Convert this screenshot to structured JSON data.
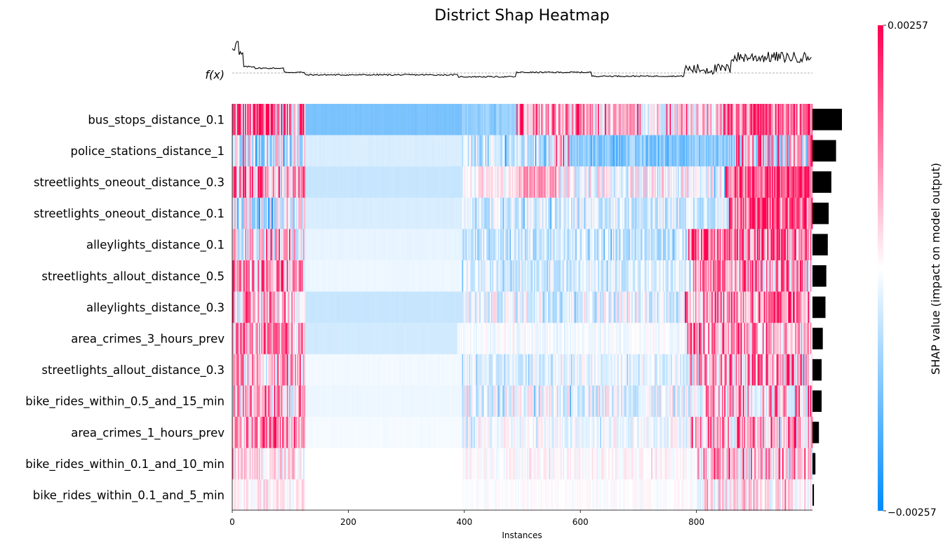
{
  "chart_data": {
    "type": "heatmap",
    "title": "District Shap Heatmap",
    "xlabel": "Instances",
    "fx_label": "f(x)",
    "colorbar_label": "SHAP value (impact on model output)",
    "colorbar_max_label": "0.00257",
    "colorbar_min_label": "−0.00257",
    "value_range": [
      -0.00257,
      0.00257
    ],
    "color_low": "#008bfb",
    "color_mid": "#ffffff",
    "color_high": "#ff0051",
    "n_instances": 1000,
    "xlim": [
      0,
      1000
    ],
    "xticks": [
      0,
      200,
      400,
      600,
      800
    ],
    "xtick_labels": [
      "0",
      "200",
      "400",
      "600",
      "800"
    ],
    "features": [
      "bus_stops_distance_0.1",
      "police_stations_distance_1",
      "streetlights_oneout_distance_0.3",
      "streetlights_oneout_distance_0.1",
      "alleylights_distance_0.1",
      "streetlights_allout_distance_0.5",
      "alleylights_distance_0.3",
      "area_crimes_3_hours_prev",
      "streetlights_allout_distance_0.3",
      "bike_rides_within_0.5_and_15_min",
      "area_crimes_1_hours_prev",
      "bike_rides_within_0.1_and_10_min",
      "bike_rides_within_0.1_and_5_min"
    ],
    "mean_abs_shap_relative": [
      1.0,
      0.8,
      0.64,
      0.55,
      0.52,
      0.47,
      0.44,
      0.35,
      0.31,
      0.31,
      0.22,
      0.1,
      0.05
    ],
    "row_segments": [
      [
        [
          0,
          125,
          0.5,
          0.9
        ],
        [
          125,
          395,
          -0.52,
          0.02
        ],
        [
          395,
          490,
          -0.42,
          0.1
        ],
        [
          490,
          620,
          0.3,
          0.5
        ],
        [
          620,
          845,
          0.12,
          0.45
        ],
        [
          845,
          1000,
          0.55,
          0.5
        ]
      ],
      [
        [
          0,
          125,
          -0.12,
          0.55
        ],
        [
          125,
          395,
          -0.15,
          0.01
        ],
        [
          395,
          545,
          -0.22,
          0.3
        ],
        [
          545,
          580,
          0.05,
          0.4
        ],
        [
          580,
          860,
          -0.45,
          0.2
        ],
        [
          860,
          1000,
          0.1,
          0.8
        ]
      ],
      [
        [
          0,
          125,
          0.3,
          0.6
        ],
        [
          125,
          395,
          -0.22,
          0.01
        ],
        [
          395,
          490,
          0.0,
          0.2
        ],
        [
          490,
          560,
          0.35,
          0.3
        ],
        [
          560,
          850,
          -0.02,
          0.35
        ],
        [
          850,
          1000,
          0.65,
          0.45
        ]
      ],
      [
        [
          0,
          125,
          -0.05,
          0.5
        ],
        [
          125,
          395,
          -0.15,
          0.01
        ],
        [
          395,
          855,
          -0.15,
          0.25
        ],
        [
          855,
          1000,
          0.62,
          0.5
        ]
      ],
      [
        [
          0,
          125,
          0.1,
          0.5
        ],
        [
          125,
          395,
          -0.09,
          0.01
        ],
        [
          395,
          785,
          -0.2,
          0.25
        ],
        [
          785,
          1000,
          0.42,
          0.6
        ]
      ],
      [
        [
          0,
          125,
          0.35,
          0.55
        ],
        [
          125,
          395,
          -0.07,
          0.01
        ],
        [
          395,
          790,
          -0.14,
          0.2
        ],
        [
          790,
          1000,
          0.3,
          0.55
        ]
      ],
      [
        [
          0,
          125,
          0.22,
          0.5
        ],
        [
          125,
          395,
          -0.22,
          0.01
        ],
        [
          395,
          780,
          -0.08,
          0.28
        ],
        [
          780,
          1000,
          0.35,
          0.55
        ]
      ],
      [
        [
          0,
          125,
          0.28,
          0.5
        ],
        [
          125,
          388,
          -0.18,
          0.01
        ],
        [
          388,
          780,
          -0.04,
          0.1
        ],
        [
          780,
          1000,
          0.32,
          0.5
        ]
      ],
      [
        [
          0,
          125,
          0.22,
          0.55
        ],
        [
          125,
          395,
          -0.05,
          0.01
        ],
        [
          395,
          785,
          -0.1,
          0.18
        ],
        [
          785,
          1000,
          0.25,
          0.6
        ]
      ],
      [
        [
          0,
          125,
          0.22,
          0.55
        ],
        [
          125,
          395,
          -0.07,
          0.01
        ],
        [
          395,
          815,
          -0.08,
          0.28
        ],
        [
          815,
          1000,
          0.22,
          0.6
        ]
      ],
      [
        [
          0,
          125,
          0.3,
          0.5
        ],
        [
          125,
          395,
          -0.04,
          0.01
        ],
        [
          395,
          790,
          -0.03,
          0.18
        ],
        [
          790,
          1000,
          0.22,
          0.55
        ]
      ],
      [
        [
          0,
          125,
          0.08,
          0.3
        ],
        [
          125,
          395,
          0.0,
          0.0
        ],
        [
          395,
          800,
          0.02,
          0.12
        ],
        [
          800,
          1000,
          0.15,
          0.45
        ]
      ],
      [
        [
          0,
          125,
          0.04,
          0.2
        ],
        [
          125,
          395,
          0.0,
          0.0
        ],
        [
          395,
          800,
          0.0,
          0.06
        ],
        [
          800,
          1000,
          0.08,
          0.3
        ]
      ]
    ],
    "fx_segments": [
      [
        0,
        10,
        0.85
      ],
      [
        10,
        20,
        0.55
      ],
      [
        20,
        40,
        0.2
      ],
      [
        40,
        90,
        0.15
      ],
      [
        90,
        125,
        0.02
      ],
      [
        125,
        390,
        -0.06
      ],
      [
        390,
        490,
        -0.12
      ],
      [
        490,
        620,
        0.02
      ],
      [
        620,
        780,
        -0.1
      ],
      [
        780,
        860,
        0.12
      ],
      [
        860,
        1000,
        0.5
      ]
    ]
  }
}
